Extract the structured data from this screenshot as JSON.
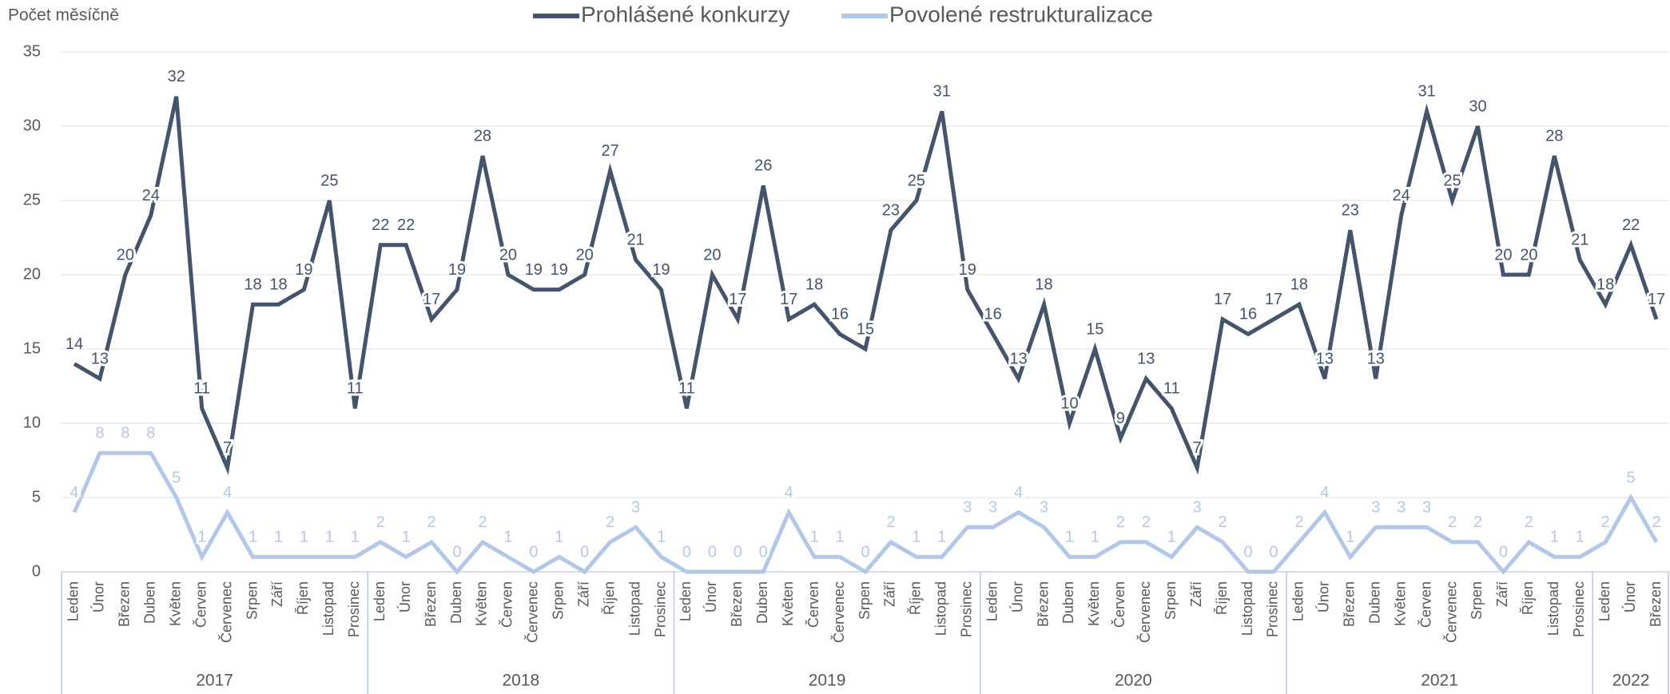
{
  "chart_data": {
    "type": "line",
    "y_label": "Počet měsíčně",
    "categories": [
      "Leden",
      "Únor",
      "Březen",
      "Duben",
      "Květen",
      "Červen",
      "Červenec",
      "Srpen",
      "Září",
      "Říjen",
      "Listopad",
      "Prosinec",
      "Leden",
      "Únor",
      "Březen",
      "Duben",
      "Květen",
      "Červen",
      "Červenec",
      "Srpen",
      "Září",
      "Říjen",
      "Listopad",
      "Prosinec",
      "Leden",
      "Únor",
      "Březen",
      "Duben",
      "Květen",
      "Červen",
      "Červenec",
      "Srpen",
      "Září",
      "Říjen",
      "Listopad",
      "Prosinec",
      "Leden",
      "Únor",
      "Březen",
      "Duben",
      "Květen",
      "Červen",
      "Červenec",
      "Srpen",
      "Září",
      "Říjen",
      "Listopad",
      "Prosinec",
      "Leden",
      "Únor",
      "Březen",
      "Duben",
      "Květen",
      "Červen",
      "Červenec",
      "Srpen",
      "Září",
      "Říjen",
      "Listopad",
      "Prosinec",
      "Leden",
      "Únor",
      "Březen"
    ],
    "years": [
      "2017",
      "2018",
      "2019",
      "2020",
      "2021",
      "2022"
    ],
    "series": [
      {
        "name": "Prohlášené konkurzy",
        "color": "#44546a",
        "values": [
          14,
          13,
          20,
          24,
          32,
          11,
          7,
          18,
          18,
          19,
          25,
          11,
          22,
          22,
          17,
          19,
          28,
          20,
          19,
          19,
          20,
          27,
          21,
          19,
          11,
          20,
          17,
          26,
          17,
          18,
          16,
          15,
          23,
          25,
          31,
          19,
          16,
          13,
          18,
          10,
          15,
          9,
          13,
          11,
          7,
          17,
          16,
          17,
          18,
          13,
          23,
          13,
          24,
          31,
          25,
          30,
          20,
          20,
          28,
          21,
          18,
          22,
          17
        ]
      },
      {
        "name": "Povolené restrukturalizace",
        "color": "#b4c7e7",
        "values": [
          4,
          8,
          8,
          8,
          5,
          1,
          4,
          1,
          1,
          1,
          1,
          1,
          2,
          1,
          2,
          0,
          2,
          1,
          0,
          1,
          0,
          2,
          3,
          1,
          0,
          0,
          0,
          0,
          4,
          1,
          1,
          0,
          2,
          1,
          1,
          3,
          3,
          4,
          3,
          1,
          1,
          2,
          2,
          1,
          3,
          2,
          0,
          0,
          2,
          4,
          1,
          3,
          3,
          3,
          2,
          2,
          0,
          2,
          1,
          1,
          2,
          5,
          2
        ]
      }
    ],
    "ylim": [
      0,
      35
    ],
    "yticks": [
      0,
      5,
      10,
      15,
      20,
      25,
      30,
      35
    ],
    "grid": true,
    "legend": "top"
  }
}
